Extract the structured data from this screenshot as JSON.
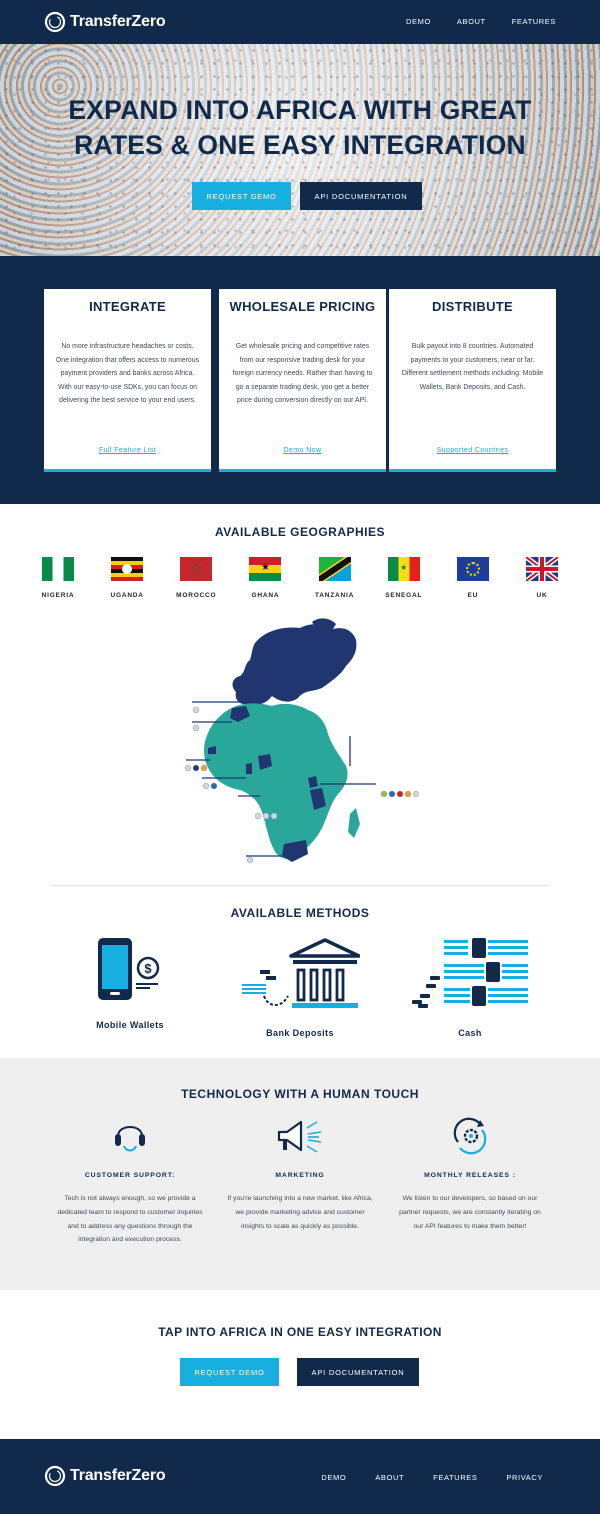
{
  "brand": {
    "name": "TransferZero"
  },
  "nav": {
    "items": [
      "DEMO",
      "ABOUT",
      "FEATURES"
    ]
  },
  "hero": {
    "title_line1": "EXPAND INTO AFRICA WITH GREAT",
    "title_line2": "RATES & ONE EASY INTEGRATION",
    "request_demo": "REQUEST DEMO",
    "api_docs": "API DOCUMENTATION"
  },
  "features": [
    {
      "title": "INTEGRATE",
      "text": "No more infrastructure headaches or costs. One integration that offers access to numerous payment providers and banks across Africa. With our easy-to-use SDKs, you can focus on delivering the best service to your end users.",
      "link": "Full Feature List"
    },
    {
      "title": "WHOLESALE PRICING",
      "text": "Get wholesale pricing and competitive rates from our responsive trading desk for your foreign currency needs. Rather than having to go a separate trading desk, you get a better price during conversion directly on our API.",
      "link": "Demo Now"
    },
    {
      "title": "DISTRIBUTE",
      "text": "Bulk payout into 8 countries. Automated payments to your customers, near or far. Different settlement methods including: Mobile Wallets, Bank Deposits, and Cash.",
      "link": "Supported Countries"
    }
  ],
  "geographies": {
    "title": "AVAILABLE GEOGRAPHIES",
    "countries": [
      "NIGERIA",
      "UGANDA",
      "MOROCCO",
      "GHANA",
      "TANZANIA",
      "SENEGAL",
      "EU",
      "UK"
    ]
  },
  "methods": {
    "title": "AVAILABLE METHODS",
    "items": [
      "Mobile Wallets",
      "Bank Deposits",
      "Cash"
    ]
  },
  "tech": {
    "title": "TECHNOLOGY WITH A HUMAN TOUCH",
    "columns": [
      {
        "title": "CUSTOMER SUPPORT:",
        "text": "Tech is not always enough, so we provide a dedicated team to respond to customer inquiries and to address any questions through the integration and execution process.",
        "icon": "headset-icon"
      },
      {
        "title": "MARKETING",
        "text": "If you're launching into a new market, like Africa, we provide marketing advice and customer insights to scale as quickly as possible.",
        "icon": "megaphone-icon"
      },
      {
        "title": "MONTHLY RELEASES :",
        "text": "We listen to our developers, so based on our partner requests, we are constantly iterating on our API features to make them better!",
        "icon": "gear-refresh-icon"
      }
    ]
  },
  "cta": {
    "title": "TAP INTO AFRICA IN ONE EASY INTEGRATION",
    "request_demo": "REQUEST DEMO",
    "api_docs": "API DOCUMENTATION"
  },
  "footer": {
    "nav": [
      "DEMO",
      "ABOUT",
      "FEATURES",
      "PRIVACY"
    ]
  },
  "colors": {
    "navy": "#112a4b",
    "accent": "#17aee0",
    "map_africa": "#2aa79b",
    "map_highlight": "#213670"
  }
}
